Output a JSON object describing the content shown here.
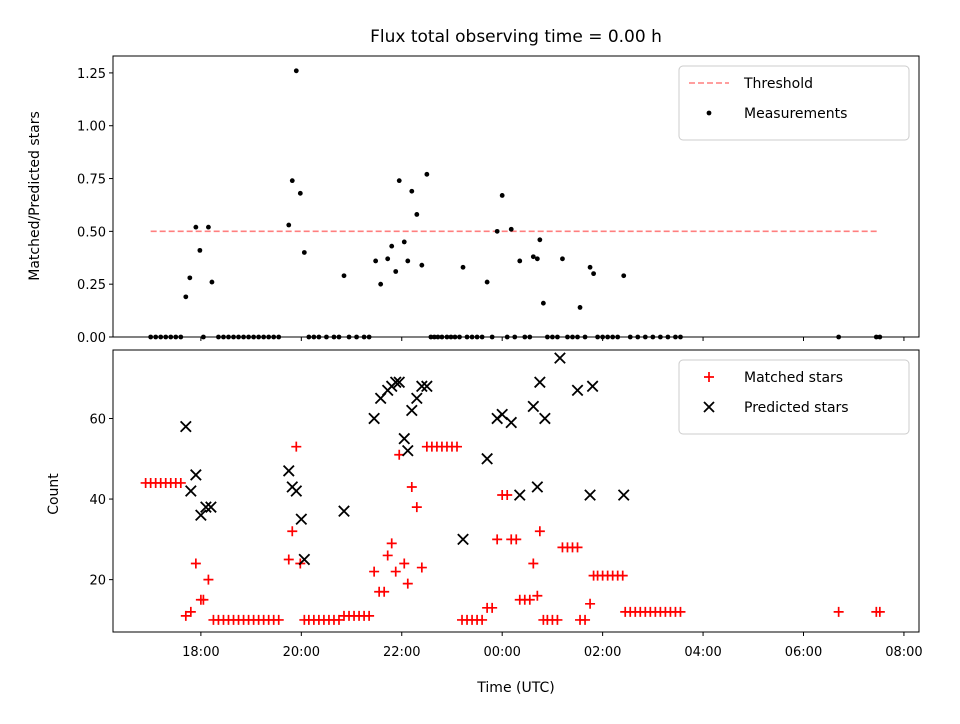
{
  "chart_data": [
    {
      "type": "scatter",
      "title": "Flux total observing time = 0.00 h",
      "xlabel": "",
      "ylabel": "Matched/Predicted stars",
      "xlim": [
        16.25,
        32.3
      ],
      "ylim": [
        0,
        1.33
      ],
      "yticks": [
        0.0,
        0.25,
        0.5,
        0.75,
        1.0,
        1.25
      ],
      "yticklabels": [
        "0.00",
        "0.25",
        "0.50",
        "0.75",
        "1.00",
        "1.25"
      ],
      "xticks": [
        18,
        20,
        22,
        24,
        26,
        28,
        30,
        32
      ],
      "legend_position": "top-right",
      "threshold": {
        "name": "Threshold",
        "y": 0.5,
        "x_range": [
          17.0,
          31.5
        ],
        "color": "#ff7f7f"
      },
      "series": [
        {
          "name": "Measurements",
          "color": "#000000",
          "marker": "dot",
          "points": [
            [
              17.0,
              0
            ],
            [
              17.1,
              0
            ],
            [
              17.2,
              0
            ],
            [
              17.3,
              0
            ],
            [
              17.4,
              0
            ],
            [
              17.5,
              0
            ],
            [
              17.6,
              0
            ],
            [
              17.7,
              0.19
            ],
            [
              17.78,
              0.28
            ],
            [
              17.9,
              0.52
            ],
            [
              17.98,
              0.41
            ],
            [
              18.05,
              0
            ],
            [
              18.15,
              0.52
            ],
            [
              18.22,
              0.26
            ],
            [
              18.35,
              0
            ],
            [
              18.45,
              0
            ],
            [
              18.55,
              0
            ],
            [
              18.65,
              0
            ],
            [
              18.75,
              0
            ],
            [
              18.85,
              0
            ],
            [
              18.95,
              0
            ],
            [
              19.05,
              0
            ],
            [
              19.15,
              0
            ],
            [
              19.25,
              0
            ],
            [
              19.35,
              0
            ],
            [
              19.45,
              0
            ],
            [
              19.55,
              0
            ],
            [
              19.75,
              0.53
            ],
            [
              19.82,
              0.74
            ],
            [
              19.9,
              1.26
            ],
            [
              19.98,
              0.68
            ],
            [
              20.06,
              0.4
            ],
            [
              20.15,
              0
            ],
            [
              20.25,
              0
            ],
            [
              20.35,
              0
            ],
            [
              20.5,
              0
            ],
            [
              20.65,
              0
            ],
            [
              20.75,
              0
            ],
            [
              20.85,
              0.29
            ],
            [
              20.95,
              0
            ],
            [
              21.1,
              0
            ],
            [
              21.25,
              0
            ],
            [
              21.35,
              0
            ],
            [
              21.48,
              0.36
            ],
            [
              21.58,
              0.25
            ],
            [
              21.72,
              0.37
            ],
            [
              21.8,
              0.43
            ],
            [
              21.88,
              0.31
            ],
            [
              21.95,
              0.74
            ],
            [
              22.05,
              0.45
            ],
            [
              22.12,
              0.36
            ],
            [
              22.2,
              0.69
            ],
            [
              22.3,
              0.58
            ],
            [
              22.4,
              0.34
            ],
            [
              22.5,
              0.77
            ],
            [
              22.58,
              0
            ],
            [
              22.65,
              0
            ],
            [
              22.72,
              0
            ],
            [
              22.8,
              0
            ],
            [
              22.9,
              0
            ],
            [
              22.98,
              0
            ],
            [
              23.06,
              0
            ],
            [
              23.15,
              0
            ],
            [
              23.22,
              0.33
            ],
            [
              23.3,
              0
            ],
            [
              23.4,
              0
            ],
            [
              23.5,
              0
            ],
            [
              23.6,
              0
            ],
            [
              23.7,
              0.26
            ],
            [
              23.8,
              0
            ],
            [
              23.9,
              0.5
            ],
            [
              24.0,
              0.67
            ],
            [
              24.1,
              0
            ],
            [
              24.18,
              0.51
            ],
            [
              24.25,
              0
            ],
            [
              24.35,
              0.36
            ],
            [
              24.45,
              0
            ],
            [
              24.55,
              0
            ],
            [
              24.62,
              0.38
            ],
            [
              24.7,
              0.37
            ],
            [
              24.75,
              0.46
            ],
            [
              24.82,
              0.16
            ],
            [
              24.9,
              0
            ],
            [
              25.0,
              0
            ],
            [
              25.1,
              0
            ],
            [
              25.2,
              0.37
            ],
            [
              25.3,
              0
            ],
            [
              25.4,
              0
            ],
            [
              25.5,
              0
            ],
            [
              25.55,
              0.14
            ],
            [
              25.65,
              0
            ],
            [
              25.75,
              0.33
            ],
            [
              25.82,
              0.3
            ],
            [
              25.9,
              0
            ],
            [
              26.0,
              0
            ],
            [
              26.1,
              0
            ],
            [
              26.2,
              0
            ],
            [
              26.3,
              0
            ],
            [
              26.42,
              0.29
            ],
            [
              26.55,
              0
            ],
            [
              26.7,
              0
            ],
            [
              26.85,
              0
            ],
            [
              27.0,
              0
            ],
            [
              27.15,
              0
            ],
            [
              27.3,
              0
            ],
            [
              27.45,
              0
            ],
            [
              27.55,
              0
            ],
            [
              30.7,
              0
            ],
            [
              31.45,
              0
            ],
            [
              31.52,
              0
            ]
          ]
        }
      ]
    },
    {
      "type": "scatter",
      "title": "",
      "xlabel": "Time (UTC)",
      "ylabel": "Count",
      "xlim": [
        16.25,
        32.3
      ],
      "ylim": [
        7,
        77
      ],
      "yticks": [
        20,
        40,
        60
      ],
      "yticklabels": [
        "20",
        "40",
        "60"
      ],
      "xticks": [
        18,
        20,
        22,
        24,
        26,
        28,
        30,
        32
      ],
      "xticklabels": [
        "18:00",
        "20:00",
        "22:00",
        "00:00",
        "02:00",
        "04:00",
        "06:00",
        "08:00"
      ],
      "legend_position": "top-right",
      "series": [
        {
          "name": "Matched stars",
          "color": "#ff0000",
          "marker": "plus",
          "points": [
            [
              16.9,
              44
            ],
            [
              17.0,
              44
            ],
            [
              17.1,
              44
            ],
            [
              17.2,
              44
            ],
            [
              17.3,
              44
            ],
            [
              17.4,
              44
            ],
            [
              17.5,
              44
            ],
            [
              17.6,
              44
            ],
            [
              17.7,
              11
            ],
            [
              17.8,
              12
            ],
            [
              17.9,
              24
            ],
            [
              18.0,
              15
            ],
            [
              18.05,
              15
            ],
            [
              18.15,
              20
            ],
            [
              18.25,
              10
            ],
            [
              18.35,
              10
            ],
            [
              18.45,
              10
            ],
            [
              18.55,
              10
            ],
            [
              18.65,
              10
            ],
            [
              18.75,
              10
            ],
            [
              18.85,
              10
            ],
            [
              18.95,
              10
            ],
            [
              19.05,
              10
            ],
            [
              19.15,
              10
            ],
            [
              19.25,
              10
            ],
            [
              19.35,
              10
            ],
            [
              19.45,
              10
            ],
            [
              19.55,
              10
            ],
            [
              19.75,
              25
            ],
            [
              19.82,
              32
            ],
            [
              19.9,
              53
            ],
            [
              19.98,
              24
            ],
            [
              20.06,
              10
            ],
            [
              20.15,
              10
            ],
            [
              20.25,
              10
            ],
            [
              20.35,
              10
            ],
            [
              20.45,
              10
            ],
            [
              20.55,
              10
            ],
            [
              20.65,
              10
            ],
            [
              20.75,
              10
            ],
            [
              20.85,
              11
            ],
            [
              20.95,
              11
            ],
            [
              21.05,
              11
            ],
            [
              21.15,
              11
            ],
            [
              21.25,
              11
            ],
            [
              21.35,
              11
            ],
            [
              21.45,
              22
            ],
            [
              21.55,
              17
            ],
            [
              21.65,
              17
            ],
            [
              21.72,
              26
            ],
            [
              21.8,
              29
            ],
            [
              21.88,
              22
            ],
            [
              21.95,
              51
            ],
            [
              22.05,
              24
            ],
            [
              22.12,
              19
            ],
            [
              22.2,
              43
            ],
            [
              22.3,
              38
            ],
            [
              22.4,
              23
            ],
            [
              22.5,
              53
            ],
            [
              22.6,
              53
            ],
            [
              22.7,
              53
            ],
            [
              22.8,
              53
            ],
            [
              22.9,
              53
            ],
            [
              23.0,
              53
            ],
            [
              23.1,
              53
            ],
            [
              23.2,
              10
            ],
            [
              23.3,
              10
            ],
            [
              23.4,
              10
            ],
            [
              23.5,
              10
            ],
            [
              23.6,
              10
            ],
            [
              23.7,
              13
            ],
            [
              23.8,
              13
            ],
            [
              23.9,
              30
            ],
            [
              24.0,
              41
            ],
            [
              24.1,
              41
            ],
            [
              24.18,
              30
            ],
            [
              24.28,
              30
            ],
            [
              24.35,
              15
            ],
            [
              24.45,
              15
            ],
            [
              24.55,
              15
            ],
            [
              24.62,
              24
            ],
            [
              24.7,
              16
            ],
            [
              24.75,
              32
            ],
            [
              24.82,
              10
            ],
            [
              24.9,
              10
            ],
            [
              25.0,
              10
            ],
            [
              25.1,
              10
            ],
            [
              25.2,
              28
            ],
            [
              25.3,
              28
            ],
            [
              25.4,
              28
            ],
            [
              25.5,
              28
            ],
            [
              25.55,
              10
            ],
            [
              25.65,
              10
            ],
            [
              25.75,
              14
            ],
            [
              25.82,
              21
            ],
            [
              25.9,
              21
            ],
            [
              26.0,
              21
            ],
            [
              26.1,
              21
            ],
            [
              26.2,
              21
            ],
            [
              26.3,
              21
            ],
            [
              26.4,
              21
            ],
            [
              26.45,
              12
            ],
            [
              26.55,
              12
            ],
            [
              26.65,
              12
            ],
            [
              26.75,
              12
            ],
            [
              26.85,
              12
            ],
            [
              26.95,
              12
            ],
            [
              27.05,
              12
            ],
            [
              27.15,
              12
            ],
            [
              27.25,
              12
            ],
            [
              27.35,
              12
            ],
            [
              27.45,
              12
            ],
            [
              27.55,
              12
            ],
            [
              30.7,
              12
            ],
            [
              31.45,
              12
            ],
            [
              31.52,
              12
            ]
          ]
        },
        {
          "name": "Predicted stars",
          "color": "#000000",
          "marker": "x",
          "points": [
            [
              17.7,
              58
            ],
            [
              17.8,
              42
            ],
            [
              17.9,
              46
            ],
            [
              18.0,
              36
            ],
            [
              18.1,
              38
            ],
            [
              18.2,
              38
            ],
            [
              19.75,
              47
            ],
            [
              19.82,
              43
            ],
            [
              19.9,
              42
            ],
            [
              20.0,
              35
            ],
            [
              20.06,
              25
            ],
            [
              20.85,
              37
            ],
            [
              21.45,
              60
            ],
            [
              21.58,
              65
            ],
            [
              21.72,
              67
            ],
            [
              21.8,
              68
            ],
            [
              21.88,
              69
            ],
            [
              21.95,
              69
            ],
            [
              22.05,
              55
            ],
            [
              22.12,
              52
            ],
            [
              22.2,
              62
            ],
            [
              22.3,
              65
            ],
            [
              22.4,
              68
            ],
            [
              22.5,
              68
            ],
            [
              23.22,
              30
            ],
            [
              23.7,
              50
            ],
            [
              23.9,
              60
            ],
            [
              24.0,
              61
            ],
            [
              24.18,
              59
            ],
            [
              24.35,
              41
            ],
            [
              24.62,
              63
            ],
            [
              24.7,
              43
            ],
            [
              24.75,
              69
            ],
            [
              24.85,
              60
            ],
            [
              25.15,
              75
            ],
            [
              25.5,
              67
            ],
            [
              25.75,
              41
            ],
            [
              25.8,
              68
            ],
            [
              26.42,
              41
            ]
          ]
        }
      ]
    }
  ]
}
